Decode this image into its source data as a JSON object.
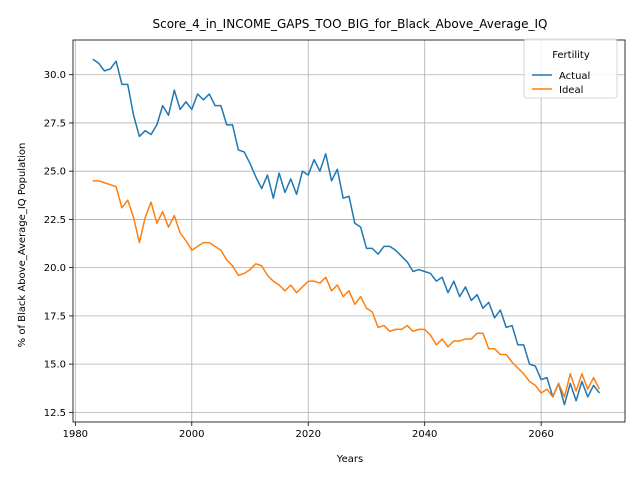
{
  "chart_data": {
    "type": "line",
    "title": "Score_4_in_INCOME_GAPS_TOO_BIG_for_Black_Above_Average_IQ",
    "xlabel": "Years",
    "ylabel": "% of Black Above_Average_IQ Population",
    "xlim": [
      1979.6,
      2074.4
    ],
    "ylim": [
      12.0,
      31.8
    ],
    "xticks": [
      1980,
      2000,
      2020,
      2040,
      2060
    ],
    "yticks": [
      12.5,
      15.0,
      17.5,
      20.0,
      22.5,
      25.0,
      27.5,
      30.0
    ],
    "ytick_labels": [
      "12.5",
      "15.0",
      "17.5",
      "20.0",
      "22.5",
      "25.0",
      "27.5",
      "30.0"
    ],
    "grid": true,
    "legend": {
      "title": "Fertility",
      "placement": "top-right"
    },
    "x": [
      1983,
      1984,
      1985,
      1986,
      1987,
      1988,
      1989,
      1990,
      1991,
      1992,
      1993,
      1994,
      1995,
      1996,
      1997,
      1998,
      1999,
      2000,
      2001,
      2002,
      2003,
      2004,
      2005,
      2006,
      2007,
      2008,
      2009,
      2010,
      2011,
      2012,
      2013,
      2014,
      2015,
      2016,
      2017,
      2018,
      2019,
      2020,
      2021,
      2022,
      2023,
      2024,
      2025,
      2026,
      2027,
      2028,
      2029,
      2030,
      2031,
      2032,
      2033,
      2034,
      2035,
      2036,
      2037,
      2038,
      2039,
      2040,
      2041,
      2042,
      2043,
      2044,
      2045,
      2046,
      2047,
      2048,
      2049,
      2050,
      2051,
      2052,
      2053,
      2054,
      2055,
      2056,
      2057,
      2058,
      2059,
      2060,
      2061,
      2062,
      2063,
      2064,
      2065,
      2066,
      2067,
      2068,
      2069,
      2070
    ],
    "series": [
      {
        "name": "Actual",
        "color": "#1f77b4",
        "values": [
          30.8,
          30.6,
          30.2,
          30.3,
          30.7,
          29.5,
          29.5,
          27.9,
          26.8,
          27.1,
          26.9,
          27.4,
          28.4,
          27.9,
          29.2,
          28.2,
          28.6,
          28.2,
          29.0,
          28.7,
          29.0,
          28.4,
          28.4,
          27.4,
          27.4,
          26.1,
          26.0,
          25.4,
          24.7,
          24.1,
          24.8,
          23.6,
          24.9,
          23.9,
          24.6,
          23.8,
          25.0,
          24.8,
          25.6,
          25.0,
          25.9,
          24.5,
          25.1,
          23.6,
          23.7,
          22.3,
          22.1,
          21.0,
          21.0,
          20.7,
          21.1,
          21.1,
          20.9,
          20.6,
          20.3,
          19.8,
          19.9,
          19.8,
          19.7,
          19.3,
          19.5,
          18.7,
          19.3,
          18.5,
          19.0,
          18.3,
          18.6,
          17.9,
          18.2,
          17.4,
          17.8,
          16.9,
          17.0,
          16.0,
          16.0,
          15.0,
          14.9,
          14.2,
          14.3,
          13.3,
          14.0,
          12.9,
          14.0,
          13.1,
          14.1,
          13.3,
          13.9,
          13.5
        ]
      },
      {
        "name": "Ideal",
        "color": "#ff7f0e",
        "values": [
          24.5,
          24.5,
          24.4,
          24.3,
          24.2,
          23.1,
          23.5,
          22.6,
          21.3,
          22.6,
          23.4,
          22.3,
          22.9,
          22.1,
          22.7,
          21.8,
          21.4,
          20.9,
          21.1,
          21.3,
          21.3,
          21.1,
          20.9,
          20.4,
          20.1,
          19.6,
          19.7,
          19.9,
          20.2,
          20.1,
          19.6,
          19.3,
          19.1,
          18.8,
          19.1,
          18.7,
          19.0,
          19.3,
          19.3,
          19.2,
          19.5,
          18.8,
          19.1,
          18.5,
          18.8,
          18.1,
          18.5,
          17.9,
          17.7,
          16.9,
          17.0,
          16.7,
          16.8,
          16.8,
          17.0,
          16.7,
          16.8,
          16.8,
          16.5,
          16.0,
          16.3,
          15.9,
          16.2,
          16.2,
          16.3,
          16.3,
          16.6,
          16.6,
          15.8,
          15.8,
          15.5,
          15.5,
          15.1,
          14.8,
          14.5,
          14.1,
          13.9,
          13.5,
          13.7,
          13.3,
          14.0,
          13.3,
          14.5,
          13.6,
          14.5,
          13.7,
          14.3,
          13.7
        ]
      }
    ]
  }
}
